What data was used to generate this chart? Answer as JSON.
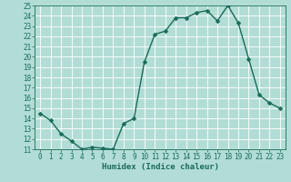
{
  "x": [
    0,
    1,
    2,
    3,
    4,
    5,
    6,
    7,
    8,
    9,
    10,
    11,
    12,
    13,
    14,
    15,
    16,
    17,
    18,
    19,
    20,
    21,
    22,
    23
  ],
  "y": [
    14.5,
    13.8,
    12.5,
    11.8,
    11.0,
    11.2,
    11.1,
    11.0,
    13.5,
    14.0,
    19.5,
    22.2,
    22.5,
    23.8,
    23.8,
    24.3,
    24.5,
    23.5,
    25.0,
    23.3,
    19.8,
    16.3,
    15.5,
    15.0
  ],
  "xlim": [
    -0.5,
    23.5
  ],
  "ylim": [
    11,
    25
  ],
  "yticks": [
    11,
    12,
    13,
    14,
    15,
    16,
    17,
    18,
    19,
    20,
    21,
    22,
    23,
    24,
    25
  ],
  "xticks": [
    0,
    1,
    2,
    3,
    4,
    5,
    6,
    7,
    8,
    9,
    10,
    11,
    12,
    13,
    14,
    15,
    16,
    17,
    18,
    19,
    20,
    21,
    22,
    23
  ],
  "xlabel": "Humidex (Indice chaleur)",
  "line_color": "#1a6b5a",
  "bg_color": "#b2ddd6",
  "grid_color": "#ffffff",
  "bottom_bar_color": "#2a7a6a",
  "marker_size": 2.5,
  "linewidth": 1.0,
  "tick_fontsize": 5.5,
  "xlabel_fontsize": 6.5
}
